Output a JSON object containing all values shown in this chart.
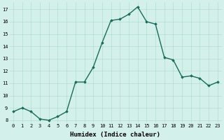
{
  "x": [
    0,
    1,
    2,
    3,
    4,
    5,
    6,
    7,
    8,
    9,
    10,
    11,
    12,
    13,
    14,
    15,
    16,
    17,
    18,
    19,
    20,
    21,
    22,
    23
  ],
  "y": [
    8.7,
    9.0,
    8.7,
    8.1,
    8.0,
    8.3,
    8.7,
    11.1,
    11.1,
    12.3,
    14.3,
    16.1,
    16.2,
    16.6,
    17.2,
    16.0,
    15.8,
    13.1,
    12.9,
    11.5,
    11.6,
    11.4,
    10.8,
    11.1
  ],
  "line_color": "#1a6b5a",
  "marker": "D",
  "marker_size": 1.8,
  "bg_color": "#d4f0eb",
  "grid_color": "#a8d8d0",
  "xlabel": "Humidex (Indice chaleur)",
  "ylim": [
    7.8,
    17.6
  ],
  "xlim": [
    -0.5,
    23.5
  ],
  "yticks": [
    8,
    9,
    10,
    11,
    12,
    13,
    14,
    15,
    16,
    17
  ],
  "xticks": [
    0,
    1,
    2,
    3,
    4,
    5,
    6,
    7,
    8,
    9,
    10,
    11,
    12,
    13,
    14,
    15,
    16,
    17,
    18,
    19,
    20,
    21,
    22,
    23
  ],
  "tick_fontsize": 5.0,
  "xlabel_fontsize": 6.5,
  "line_width": 1.0
}
